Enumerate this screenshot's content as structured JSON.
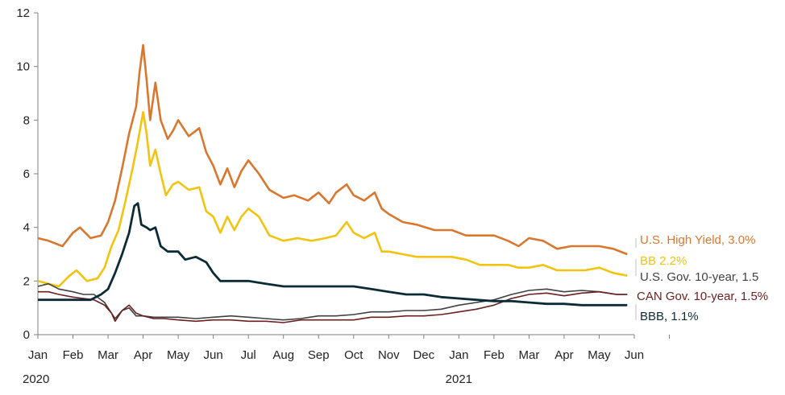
{
  "chart_data": {
    "type": "line",
    "title": "",
    "xlabel": "",
    "ylabel": "",
    "ylim": [
      0,
      12
    ],
    "yticks": [
      "0",
      "2",
      "4",
      "6",
      "8",
      "10",
      "12"
    ],
    "xticks": [
      "Jan",
      "Feb",
      "Mar",
      "Apr",
      "May",
      "Jun",
      "Jul",
      "Aug",
      "Sep",
      "Oct",
      "Nov",
      "Dec",
      "Jan",
      "Feb",
      "Mar",
      "Apr",
      "May",
      "Jun"
    ],
    "year_labels": [
      "2020",
      "2021"
    ],
    "grid": false,
    "legend": "right-edge inline labels",
    "series": [
      {
        "name": "U.S. High Yield, 3.0%",
        "color": "#D9772E",
        "points": [
          [
            0,
            3.6
          ],
          [
            0.3,
            3.5
          ],
          [
            0.7,
            3.3
          ],
          [
            1.0,
            3.8
          ],
          [
            1.2,
            4.0
          ],
          [
            1.5,
            3.6
          ],
          [
            1.8,
            3.7
          ],
          [
            2.0,
            4.2
          ],
          [
            2.2,
            5.0
          ],
          [
            2.4,
            6.2
          ],
          [
            2.6,
            7.5
          ],
          [
            2.8,
            8.5
          ],
          [
            2.9,
            9.8
          ],
          [
            3.0,
            10.8
          ],
          [
            3.1,
            9.5
          ],
          [
            3.2,
            8.0
          ],
          [
            3.35,
            9.4
          ],
          [
            3.5,
            8.0
          ],
          [
            3.7,
            7.3
          ],
          [
            3.85,
            7.6
          ],
          [
            4.0,
            8.0
          ],
          [
            4.3,
            7.4
          ],
          [
            4.6,
            7.7
          ],
          [
            4.8,
            6.8
          ],
          [
            5.0,
            6.3
          ],
          [
            5.2,
            5.6
          ],
          [
            5.4,
            6.2
          ],
          [
            5.6,
            5.5
          ],
          [
            5.8,
            6.1
          ],
          [
            6.0,
            6.5
          ],
          [
            6.3,
            6.0
          ],
          [
            6.6,
            5.4
          ],
          [
            7.0,
            5.1
          ],
          [
            7.3,
            5.2
          ],
          [
            7.7,
            5.0
          ],
          [
            8.0,
            5.3
          ],
          [
            8.3,
            4.9
          ],
          [
            8.5,
            5.3
          ],
          [
            8.8,
            5.6
          ],
          [
            9.0,
            5.2
          ],
          [
            9.3,
            5.0
          ],
          [
            9.6,
            5.3
          ],
          [
            9.8,
            4.7
          ],
          [
            10.0,
            4.5
          ],
          [
            10.4,
            4.2
          ],
          [
            10.8,
            4.1
          ],
          [
            11.3,
            3.9
          ],
          [
            11.8,
            3.9
          ],
          [
            12.2,
            3.7
          ],
          [
            12.6,
            3.7
          ],
          [
            13.0,
            3.7
          ],
          [
            13.4,
            3.5
          ],
          [
            13.7,
            3.3
          ],
          [
            14.0,
            3.6
          ],
          [
            14.4,
            3.5
          ],
          [
            14.8,
            3.2
          ],
          [
            15.2,
            3.3
          ],
          [
            15.6,
            3.3
          ],
          [
            16.0,
            3.3
          ],
          [
            16.4,
            3.2
          ],
          [
            16.8,
            3.0
          ]
        ]
      },
      {
        "name": "BB 2.2%",
        "color": "#F2C30F",
        "points": [
          [
            0,
            2.0
          ],
          [
            0.3,
            1.9
          ],
          [
            0.6,
            1.8
          ],
          [
            0.9,
            2.2
          ],
          [
            1.1,
            2.4
          ],
          [
            1.4,
            2.0
          ],
          [
            1.7,
            2.1
          ],
          [
            1.9,
            2.5
          ],
          [
            2.1,
            3.3
          ],
          [
            2.3,
            3.9
          ],
          [
            2.5,
            5.0
          ],
          [
            2.7,
            6.2
          ],
          [
            2.85,
            7.2
          ],
          [
            3.0,
            8.3
          ],
          [
            3.1,
            7.5
          ],
          [
            3.2,
            6.3
          ],
          [
            3.35,
            6.9
          ],
          [
            3.5,
            6.0
          ],
          [
            3.65,
            5.2
          ],
          [
            3.85,
            5.6
          ],
          [
            4.0,
            5.7
          ],
          [
            4.3,
            5.4
          ],
          [
            4.6,
            5.5
          ],
          [
            4.8,
            4.6
          ],
          [
            5.0,
            4.4
          ],
          [
            5.2,
            3.8
          ],
          [
            5.4,
            4.4
          ],
          [
            5.6,
            3.9
          ],
          [
            5.8,
            4.4
          ],
          [
            6.0,
            4.7
          ],
          [
            6.3,
            4.4
          ],
          [
            6.6,
            3.7
          ],
          [
            7.0,
            3.5
          ],
          [
            7.4,
            3.6
          ],
          [
            7.8,
            3.5
          ],
          [
            8.2,
            3.6
          ],
          [
            8.5,
            3.7
          ],
          [
            8.8,
            4.2
          ],
          [
            9.0,
            3.8
          ],
          [
            9.3,
            3.6
          ],
          [
            9.6,
            3.8
          ],
          [
            9.8,
            3.1
          ],
          [
            10.0,
            3.1
          ],
          [
            10.4,
            3.0
          ],
          [
            10.8,
            2.9
          ],
          [
            11.3,
            2.9
          ],
          [
            11.8,
            2.9
          ],
          [
            12.2,
            2.8
          ],
          [
            12.6,
            2.6
          ],
          [
            13.0,
            2.6
          ],
          [
            13.4,
            2.6
          ],
          [
            13.7,
            2.5
          ],
          [
            14.0,
            2.5
          ],
          [
            14.4,
            2.6
          ],
          [
            14.8,
            2.4
          ],
          [
            15.2,
            2.4
          ],
          [
            15.6,
            2.4
          ],
          [
            16.0,
            2.5
          ],
          [
            16.4,
            2.3
          ],
          [
            16.8,
            2.2
          ]
        ]
      },
      {
        "name": "U.S. Gov. 10-year, 1.5",
        "color": "#404040",
        "points": [
          [
            0,
            1.8
          ],
          [
            0.3,
            1.9
          ],
          [
            0.6,
            1.7
          ],
          [
            1.0,
            1.6
          ],
          [
            1.3,
            1.5
          ],
          [
            1.6,
            1.5
          ],
          [
            1.9,
            1.2
          ],
          [
            2.1,
            0.8
          ],
          [
            2.2,
            0.6
          ],
          [
            2.4,
            0.9
          ],
          [
            2.6,
            1.0
          ],
          [
            2.8,
            0.7
          ],
          [
            3.0,
            0.7
          ],
          [
            3.3,
            0.65
          ],
          [
            3.6,
            0.65
          ],
          [
            4.0,
            0.65
          ],
          [
            4.5,
            0.6
          ],
          [
            5.0,
            0.65
          ],
          [
            5.5,
            0.7
          ],
          [
            6.0,
            0.65
          ],
          [
            6.5,
            0.6
          ],
          [
            7.0,
            0.55
          ],
          [
            7.5,
            0.6
          ],
          [
            8.0,
            0.7
          ],
          [
            8.5,
            0.7
          ],
          [
            9.0,
            0.75
          ],
          [
            9.5,
            0.85
          ],
          [
            10.0,
            0.85
          ],
          [
            10.5,
            0.9
          ],
          [
            11.0,
            0.9
          ],
          [
            11.5,
            0.95
          ],
          [
            12.0,
            1.1
          ],
          [
            12.5,
            1.2
          ],
          [
            13.0,
            1.3
          ],
          [
            13.5,
            1.5
          ],
          [
            14.0,
            1.65
          ],
          [
            14.5,
            1.7
          ],
          [
            15.0,
            1.6
          ],
          [
            15.5,
            1.65
          ],
          [
            16.0,
            1.6
          ],
          [
            16.5,
            1.5
          ],
          [
            16.8,
            1.5
          ]
        ]
      },
      {
        "name": "CAN Gov. 10-year, 1.5%",
        "color": "#6B1F1F",
        "points": [
          [
            0,
            1.6
          ],
          [
            0.3,
            1.6
          ],
          [
            0.6,
            1.5
          ],
          [
            1.0,
            1.4
          ],
          [
            1.3,
            1.35
          ],
          [
            1.6,
            1.3
          ],
          [
            1.9,
            1.1
          ],
          [
            2.1,
            0.8
          ],
          [
            2.2,
            0.5
          ],
          [
            2.4,
            0.9
          ],
          [
            2.6,
            1.1
          ],
          [
            2.8,
            0.8
          ],
          [
            3.0,
            0.7
          ],
          [
            3.3,
            0.6
          ],
          [
            3.6,
            0.6
          ],
          [
            4.0,
            0.55
          ],
          [
            4.5,
            0.5
          ],
          [
            5.0,
            0.55
          ],
          [
            5.5,
            0.55
          ],
          [
            6.0,
            0.5
          ],
          [
            6.5,
            0.5
          ],
          [
            7.0,
            0.45
          ],
          [
            7.5,
            0.55
          ],
          [
            8.0,
            0.55
          ],
          [
            8.5,
            0.55
          ],
          [
            9.0,
            0.55
          ],
          [
            9.5,
            0.65
          ],
          [
            10.0,
            0.65
          ],
          [
            10.5,
            0.7
          ],
          [
            11.0,
            0.7
          ],
          [
            11.5,
            0.75
          ],
          [
            12.0,
            0.85
          ],
          [
            12.5,
            0.95
          ],
          [
            13.0,
            1.1
          ],
          [
            13.5,
            1.35
          ],
          [
            14.0,
            1.5
          ],
          [
            14.5,
            1.55
          ],
          [
            15.0,
            1.45
          ],
          [
            15.5,
            1.55
          ],
          [
            16.0,
            1.6
          ],
          [
            16.5,
            1.5
          ],
          [
            16.8,
            1.5
          ]
        ]
      },
      {
        "name": "BBB, 1.1%",
        "color": "#0B2B36",
        "points": [
          [
            0,
            1.3
          ],
          [
            0.5,
            1.3
          ],
          [
            1.0,
            1.3
          ],
          [
            1.5,
            1.3
          ],
          [
            1.8,
            1.5
          ],
          [
            2.0,
            1.7
          ],
          [
            2.2,
            2.3
          ],
          [
            2.4,
            3.0
          ],
          [
            2.6,
            3.8
          ],
          [
            2.75,
            4.8
          ],
          [
            2.85,
            4.9
          ],
          [
            2.95,
            4.1
          ],
          [
            3.1,
            4.0
          ],
          [
            3.2,
            3.9
          ],
          [
            3.35,
            4.0
          ],
          [
            3.5,
            3.3
          ],
          [
            3.7,
            3.1
          ],
          [
            4.0,
            3.1
          ],
          [
            4.2,
            2.8
          ],
          [
            4.5,
            2.9
          ],
          [
            4.8,
            2.7
          ],
          [
            5.0,
            2.3
          ],
          [
            5.2,
            2.0
          ],
          [
            5.5,
            2.0
          ],
          [
            6.0,
            2.0
          ],
          [
            6.5,
            1.9
          ],
          [
            7.0,
            1.8
          ],
          [
            7.5,
            1.8
          ],
          [
            8.0,
            1.8
          ],
          [
            8.5,
            1.8
          ],
          [
            9.0,
            1.8
          ],
          [
            9.5,
            1.7
          ],
          [
            10.0,
            1.6
          ],
          [
            10.5,
            1.5
          ],
          [
            11.0,
            1.5
          ],
          [
            11.5,
            1.4
          ],
          [
            12.0,
            1.35
          ],
          [
            12.5,
            1.3
          ],
          [
            13.0,
            1.25
          ],
          [
            13.5,
            1.25
          ],
          [
            14.0,
            1.2
          ],
          [
            14.5,
            1.15
          ],
          [
            15.0,
            1.15
          ],
          [
            15.5,
            1.1
          ],
          [
            16.0,
            1.1
          ],
          [
            16.5,
            1.1
          ],
          [
            16.8,
            1.1
          ]
        ]
      }
    ]
  }
}
